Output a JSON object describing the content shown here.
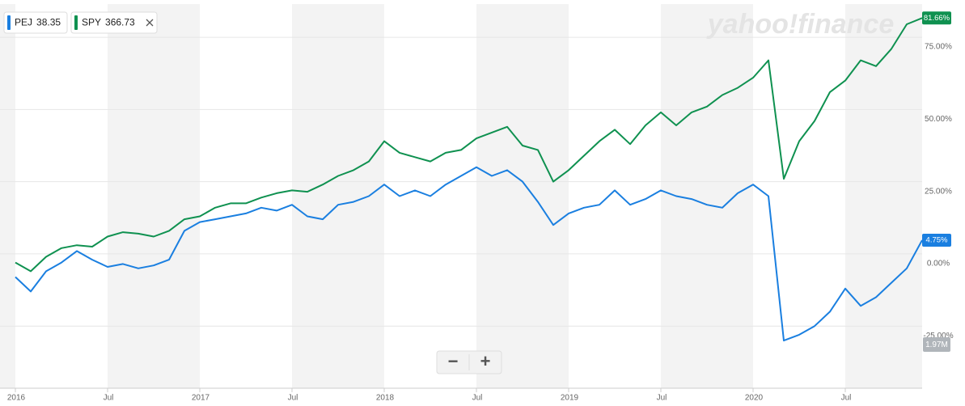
{
  "chart_data": {
    "type": "line",
    "watermark": "yahoo!finance",
    "zoom_out": "−",
    "zoom_in": "+",
    "volume_label": "1.97M",
    "x": [
      "2016-01",
      "2016-02",
      "2016-03",
      "2016-04",
      "2016-05",
      "2016-06",
      "2016-07",
      "2016-08",
      "2016-09",
      "2016-10",
      "2016-11",
      "2016-12",
      "2017-01",
      "2017-02",
      "2017-03",
      "2017-04",
      "2017-05",
      "2017-06",
      "2017-07",
      "2017-08",
      "2017-09",
      "2017-10",
      "2017-11",
      "2017-12",
      "2018-01",
      "2018-02",
      "2018-03",
      "2018-04",
      "2018-05",
      "2018-06",
      "2018-07",
      "2018-08",
      "2018-09",
      "2018-10",
      "2018-11",
      "2018-12",
      "2019-01",
      "2019-02",
      "2019-03",
      "2019-04",
      "2019-05",
      "2019-06",
      "2019-07",
      "2019-08",
      "2019-09",
      "2019-10",
      "2019-11",
      "2019-12",
      "2020-01",
      "2020-02",
      "2020-03",
      "2020-04",
      "2020-05",
      "2020-06",
      "2020-07",
      "2020-08",
      "2020-09",
      "2020-10",
      "2020-11",
      "2020-12"
    ],
    "series": [
      {
        "name": "PEJ",
        "price": "38.35",
        "color": "#1a7fe0",
        "end_label": "4.75%",
        "values": [
          -8,
          -13,
          -6,
          -3,
          1,
          -2,
          -4.5,
          -3.5,
          -5,
          -4,
          -2,
          8,
          11,
          12,
          13,
          14,
          16,
          15,
          17,
          13,
          12,
          17,
          18,
          20,
          24,
          20,
          22,
          20,
          24,
          27,
          30,
          27,
          29,
          25,
          18,
          10,
          14,
          16,
          17,
          22,
          17,
          19,
          22,
          20,
          19,
          17,
          16,
          21,
          24,
          20,
          -30,
          -28,
          -25,
          -20,
          -12,
          -18,
          -15,
          -10,
          -5,
          4.75
        ]
      },
      {
        "name": "SPY",
        "price": "366.73",
        "color": "#0f9150",
        "end_label": "81.66%",
        "values": [
          -3,
          -6,
          -1,
          2,
          3,
          2.5,
          6,
          7.5,
          7,
          6,
          8,
          12,
          13,
          16,
          17.5,
          17.5,
          19.5,
          21,
          22,
          21.5,
          24,
          27,
          29,
          32,
          39,
          35,
          33.5,
          32,
          35,
          36,
          40,
          42,
          44,
          37.5,
          36,
          25,
          29,
          34,
          39,
          43,
          38,
          44.5,
          49,
          44.5,
          49,
          51,
          55,
          57.5,
          61,
          67,
          26,
          39,
          46,
          56,
          60,
          67,
          65,
          71,
          79.5,
          81.66
        ]
      }
    ],
    "xlim": [
      "2015-12",
      "2020-12"
    ],
    "xticks": [
      {
        "value": "2016-01",
        "label": "2016"
      },
      {
        "value": "2016-07",
        "label": "Jul"
      },
      {
        "value": "2017-01",
        "label": "2017"
      },
      {
        "value": "2017-07",
        "label": "Jul"
      },
      {
        "value": "2018-01",
        "label": "2018"
      },
      {
        "value": "2018-07",
        "label": "Jul"
      },
      {
        "value": "2019-01",
        "label": "2019"
      },
      {
        "value": "2019-07",
        "label": "Jul"
      },
      {
        "value": "2020-01",
        "label": "2020"
      },
      {
        "value": "2020-07",
        "label": "Jul"
      }
    ],
    "ylim": [
      -46.5,
      86.5
    ],
    "yticks": [
      {
        "value": -25,
        "label": "-25.00%"
      },
      {
        "value": 0,
        "label": "0.00%"
      },
      {
        "value": 25,
        "label": "25.00%"
      },
      {
        "value": 50,
        "label": "50.00%"
      },
      {
        "value": 75,
        "label": "75.00%"
      }
    ],
    "grid": true
  }
}
